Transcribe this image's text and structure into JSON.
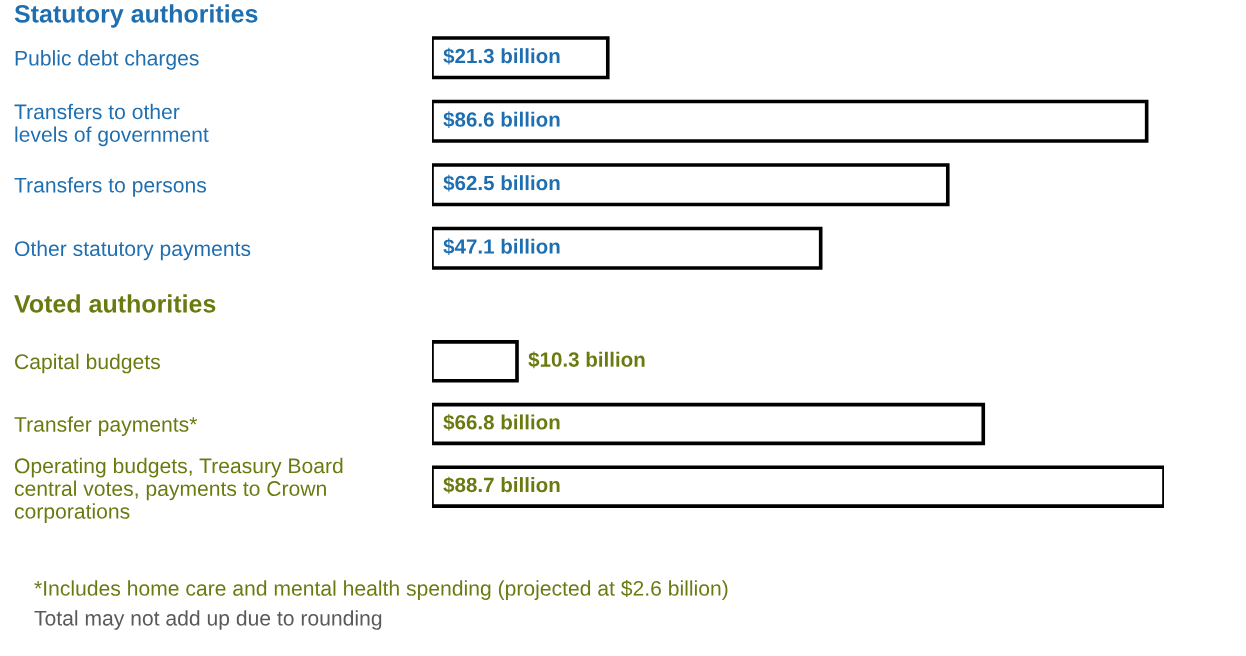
{
  "chart_data": [
    {
      "type": "bar",
      "orientation": "horizontal",
      "title": "Statutory authorities",
      "categories": [
        "Public debt charges",
        "Transfers to other\nlevels of government",
        "Transfers to persons",
        "Other statutory payments"
      ],
      "values": [
        21.3,
        86.6,
        62.5,
        47.1
      ],
      "value_labels": [
        "$21.3 billion",
        "$86.6 billion",
        "$62.5 billion",
        "$47.1 billion"
      ],
      "color": "#ffffff",
      "grid": false,
      "legend": false
    },
    {
      "type": "bar",
      "orientation": "horizontal",
      "title": "Voted authorities",
      "categories": [
        "Capital budgets",
        "Transfer payments*",
        "Operating budgets, Treasury Board\ncentral votes, payments to Crown\ncorporations"
      ],
      "values": [
        10.3,
        66.8,
        88.7
      ],
      "value_labels": [
        "$10.3 billion",
        "$66.8 billion",
        "$88.7 billion"
      ],
      "color": "#ffffff",
      "grid": false,
      "legend": false,
      "annotations": [
        "*Includes home care and mental health spending (projected at $2.6 billion)",
        "Total may not add up due to rounding"
      ]
    }
  ]
}
